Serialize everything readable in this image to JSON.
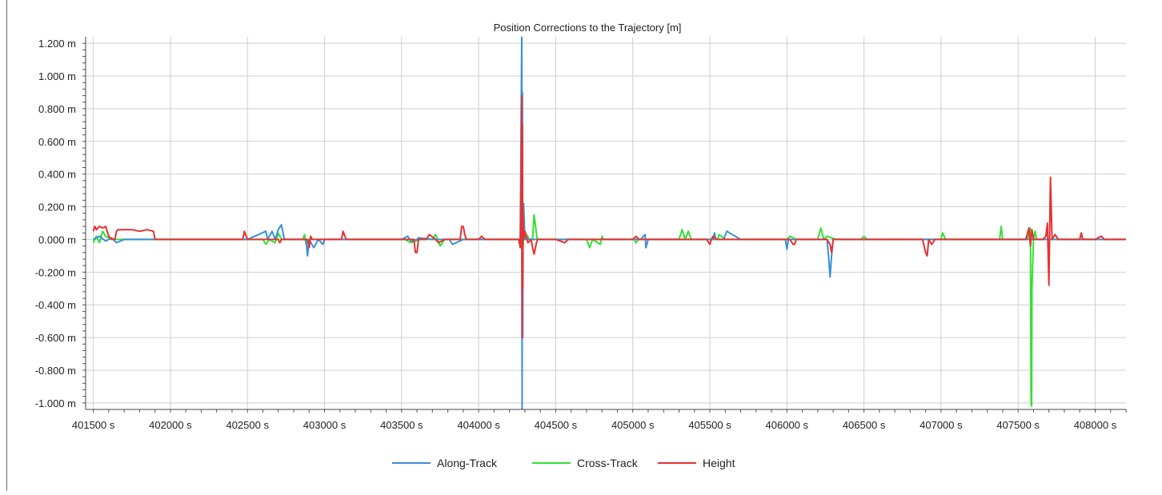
{
  "chart_data": {
    "type": "line",
    "title": "Position Corrections to the Trajectory [m]",
    "xlabel": "",
    "ylabel": "",
    "xlim": [
      401450,
      408200
    ],
    "ylim": [
      -1.04,
      1.24
    ],
    "x_ticks": [
      401500,
      402000,
      402500,
      403000,
      403500,
      404000,
      404500,
      405000,
      405500,
      406000,
      406500,
      407000,
      407500,
      408000
    ],
    "x_tick_labels": [
      "401500 s",
      "402000 s",
      "402500 s",
      "403000 s",
      "403500 s",
      "404000 s",
      "404500 s",
      "405000 s",
      "405500 s",
      "406000 s",
      "406500 s",
      "407000 s",
      "407500 s",
      "408000 s"
    ],
    "y_ticks": [
      1.2,
      1.0,
      0.8,
      0.6,
      0.4,
      0.2,
      0.0,
      -0.2,
      -0.4,
      -0.6,
      -0.8,
      -1.0
    ],
    "y_tick_labels": [
      "1.200 m",
      "1.000 m",
      "0.800 m",
      "0.600 m",
      "0.400 m",
      "0.200 m",
      "0.000 m",
      "-0.200 m",
      "-0.400 m",
      "-0.600 m",
      "-0.800 m",
      "-1.000 m"
    ],
    "grid": true,
    "legend_position": "bottom-center",
    "series": [
      {
        "name": "Along-Track",
        "color": "#3a8fd8",
        "x": [
          401500,
          401540,
          401580,
          401620,
          401650,
          401700,
          401900,
          402500,
          402620,
          402630,
          402660,
          402680,
          402700,
          402720,
          402740,
          402880,
          402890,
          402900,
          402930,
          402960,
          402990,
          403000,
          403500,
          403540,
          403560,
          403600,
          403610,
          403700,
          403810,
          403830,
          403900,
          404270,
          404280,
          404282,
          404284,
          404286,
          404288,
          404290,
          404292,
          404300,
          404320,
          404500,
          405050,
          405080,
          405085,
          405100,
          405520,
          405530,
          405540,
          405590,
          405610,
          405700,
          405990,
          406000,
          406010,
          406020,
          406260,
          406270,
          406280,
          406290,
          406300,
          406400,
          408200
        ],
        "y": [
          0.0,
          0.02,
          -0.01,
          0.01,
          -0.02,
          0.0,
          0.0,
          0.0,
          0.05,
          0.0,
          0.05,
          0.0,
          0.06,
          0.09,
          0.0,
          0.0,
          -0.1,
          0.0,
          -0.05,
          0.0,
          -0.03,
          0.0,
          0.0,
          0.02,
          -0.01,
          0.0,
          0.01,
          0.0,
          0.0,
          -0.03,
          0.0,
          0.0,
          1.24,
          -1.04,
          0.9,
          -0.6,
          0.2,
          0.0,
          0.22,
          0.0,
          0.0,
          0.0,
          0.0,
          0.03,
          -0.05,
          0.0,
          0.0,
          0.04,
          0.0,
          0.0,
          0.05,
          0.0,
          0.0,
          -0.06,
          0.0,
          0.0,
          0.0,
          -0.1,
          -0.23,
          -0.1,
          0.0,
          0.0,
          0.0
        ]
      },
      {
        "name": "Cross-Track",
        "color": "#33e033",
        "x": [
          401500,
          401520,
          401540,
          401560,
          401580,
          401620,
          401680,
          401900,
          402600,
          402620,
          402640,
          402680,
          402700,
          402720,
          402740,
          402860,
          402870,
          402880,
          402900,
          403000,
          403520,
          403560,
          403620,
          403700,
          403720,
          403750,
          403780,
          403800,
          404270,
          404280,
          404282,
          404284,
          404288,
          404290,
          404300,
          404310,
          404330,
          404350,
          404360,
          404380,
          404500,
          404700,
          404720,
          404740,
          404790,
          404800,
          404810,
          405010,
          405020,
          405040,
          405300,
          405320,
          405340,
          405360,
          405380,
          405550,
          405560,
          405600,
          405610,
          406000,
          406020,
          406060,
          406200,
          406220,
          406240,
          406260,
          406320,
          406480,
          406500,
          406520,
          407000,
          407010,
          407030,
          407380,
          407390,
          407400,
          407560,
          407580,
          407582,
          407584,
          407588,
          407590,
          407600,
          407610,
          407620,
          407700,
          407720,
          408200
        ],
        "y": [
          -0.02,
          0.02,
          -0.02,
          0.05,
          0.02,
          0.0,
          0.0,
          0.0,
          0.0,
          -0.03,
          0.0,
          -0.02,
          0.04,
          0.0,
          0.0,
          0.0,
          0.03,
          -0.03,
          0.0,
          0.0,
          0.0,
          -0.02,
          0.0,
          0.0,
          0.03,
          -0.04,
          0.0,
          0.0,
          0.0,
          0.24,
          -0.2,
          0.12,
          -0.05,
          0.0,
          0.0,
          0.03,
          0.0,
          0.0,
          0.15,
          0.0,
          0.0,
          0.0,
          -0.05,
          0.0,
          -0.03,
          0.02,
          0.0,
          0.0,
          -0.02,
          0.0,
          0.0,
          0.06,
          0.0,
          0.05,
          0.0,
          0.0,
          0.03,
          0.0,
          0.0,
          0.0,
          0.02,
          0.0,
          0.0,
          0.07,
          0.0,
          0.02,
          0.0,
          0.0,
          0.02,
          0.0,
          0.0,
          0.04,
          0.0,
          0.0,
          0.08,
          0.0,
          0.0,
          0.07,
          -0.5,
          -1.0,
          -1.02,
          -0.3,
          0.0,
          0.05,
          0.0,
          0.0,
          0.0,
          0.0
        ]
      },
      {
        "name": "Height",
        "color": "#e83030",
        "x": [
          401500,
          401510,
          401520,
          401540,
          401560,
          401580,
          401600,
          401620,
          401640,
          401650,
          401660,
          401700,
          401750,
          401800,
          401850,
          401890,
          401900,
          402470,
          402480,
          402500,
          402700,
          402710,
          402720,
          402750,
          402890,
          402900,
          402910,
          402920,
          403110,
          403120,
          403140,
          403500,
          403580,
          403590,
          403600,
          403610,
          403660,
          403680,
          403720,
          403740,
          403780,
          403880,
          403890,
          403900,
          403910,
          403920,
          404000,
          404020,
          404040,
          404260,
          404270,
          404275,
          404280,
          404282,
          404284,
          404286,
          404288,
          404290,
          404300,
          404320,
          404340,
          404350,
          404360,
          404380,
          404500,
          404560,
          404580,
          405000,
          405020,
          405040,
          405480,
          405500,
          405510,
          405520,
          405540,
          406020,
          406040,
          406050,
          406060,
          406100,
          406260,
          406280,
          406290,
          406300,
          406400,
          406880,
          406900,
          406910,
          406920,
          406940,
          406960,
          407000,
          407550,
          407570,
          407580,
          407590,
          407600,
          407620,
          407660,
          407680,
          407690,
          407700,
          407710,
          407720,
          407740,
          407760,
          407900,
          407910,
          407920,
          407940,
          408000,
          408040,
          408060,
          408200
        ],
        "y": [
          0.05,
          0.08,
          0.06,
          0.08,
          0.07,
          0.08,
          0.02,
          0.0,
          0.0,
          0.05,
          0.06,
          0.06,
          0.06,
          0.05,
          0.06,
          0.05,
          0.0,
          0.0,
          0.05,
          0.0,
          0.0,
          -0.02,
          0.0,
          0.0,
          0.0,
          -0.05,
          0.02,
          0.0,
          0.0,
          0.05,
          0.0,
          0.0,
          0.0,
          -0.08,
          -0.08,
          0.0,
          0.0,
          0.03,
          0.0,
          -0.02,
          0.0,
          0.0,
          0.08,
          0.08,
          0.03,
          0.0,
          0.0,
          0.02,
          0.0,
          0.0,
          -0.05,
          0.3,
          0.88,
          -0.6,
          0.7,
          -0.3,
          0.15,
          0.0,
          0.05,
          -0.02,
          0.0,
          -0.05,
          -0.09,
          0.0,
          0.0,
          -0.02,
          0.0,
          0.0,
          0.02,
          0.0,
          0.0,
          -0.03,
          0.0,
          0.02,
          0.0,
          0.0,
          -0.03,
          -0.03,
          0.0,
          0.0,
          0.0,
          -0.03,
          -0.08,
          0.0,
          0.0,
          0.0,
          -0.08,
          -0.1,
          0.0,
          -0.03,
          0.0,
          0.0,
          0.0,
          0.07,
          -0.04,
          0.06,
          0.0,
          0.0,
          0.0,
          0.02,
          0.1,
          -0.28,
          0.38,
          0.0,
          0.03,
          0.0,
          0.0,
          0.04,
          0.0,
          0.0,
          0.0,
          0.02,
          0.0,
          0.0
        ]
      }
    ]
  }
}
